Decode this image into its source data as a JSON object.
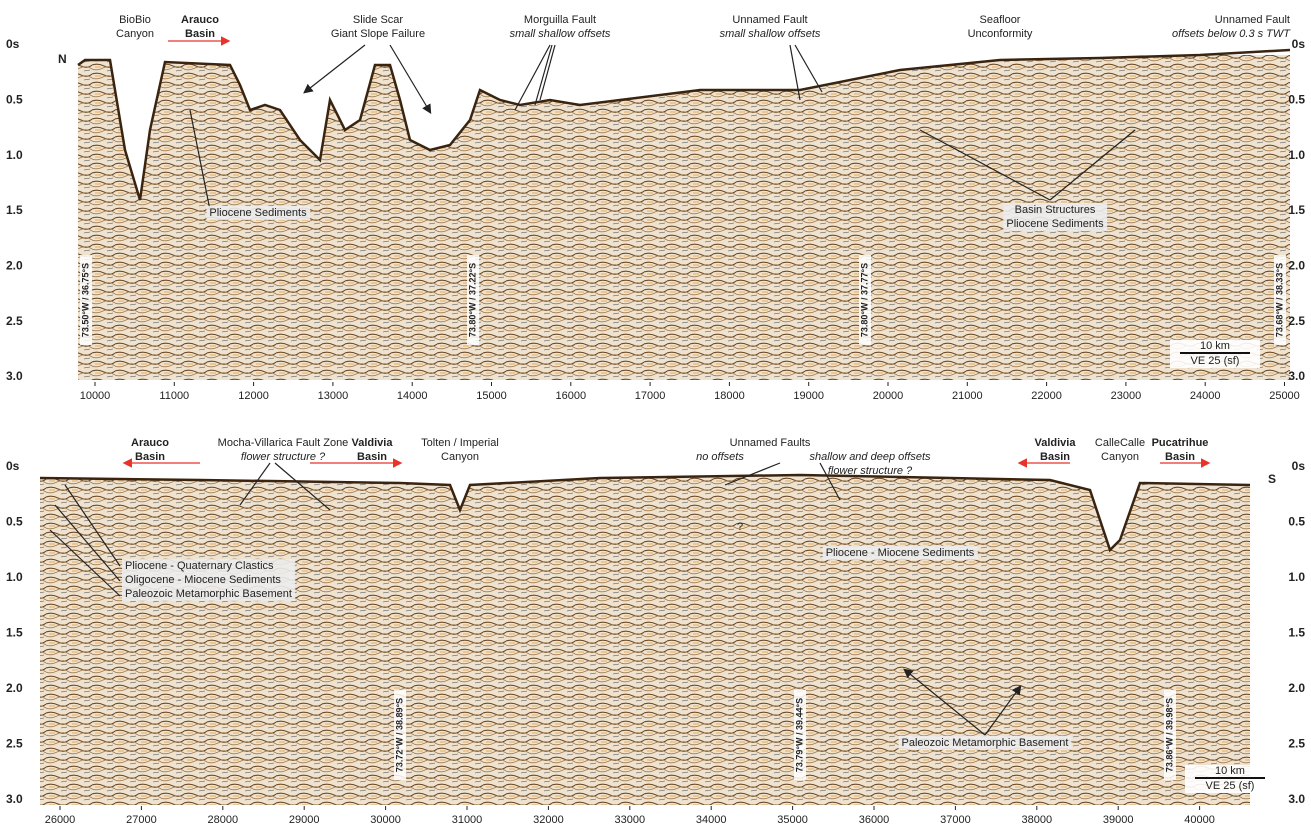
{
  "panels": [
    {
      "orientation": "N",
      "y_ticks": [
        "0s",
        "0.5",
        "1.0",
        "1.5",
        "2.0",
        "2.5",
        "3.0"
      ],
      "x_ticks": [
        10000,
        11000,
        12000,
        13000,
        14000,
        15000,
        16000,
        17000,
        18000,
        19000,
        20000,
        21000,
        22000,
        23000,
        24000,
        25000
      ],
      "annotations": [
        {
          "lines": [
            "BioBio",
            "Canyon"
          ]
        },
        {
          "lines": [
            "Arauco",
            "Basin"
          ]
        },
        {
          "lines": [
            "Slide Scar",
            "Giant Slope Failure"
          ]
        },
        {
          "lines": [
            "Morguilla Fault",
            "small shallow offsets"
          ]
        },
        {
          "lines": [
            "Unnamed Fault",
            "small shallow offsets"
          ]
        },
        {
          "lines": [
            "Seafloor",
            "Unconformity"
          ]
        },
        {
          "lines": [
            "Unnamed Fault",
            "offsets below 0.3 s TWT"
          ]
        }
      ],
      "labels": [
        {
          "lines": [
            "Pliocene Sediments"
          ]
        },
        {
          "lines": [
            "Basin Structures",
            "Pliocene Sediments"
          ]
        }
      ],
      "locations": [
        "73.50°W / 36.75°S",
        "73.80°W / 37.22°S",
        "73.80°W / 37.77°S",
        "73.68°W / 38.33°S"
      ],
      "scale_bar": {
        "distance": "10 km",
        "exaggeration": "VE 25 (sf)"
      }
    },
    {
      "orientation": "S",
      "y_ticks": [
        "0s",
        "0.5",
        "1.0",
        "1.5",
        "2.0",
        "2.5",
        "3.0"
      ],
      "x_ticks": [
        26000,
        27000,
        28000,
        29000,
        30000,
        31000,
        32000,
        33000,
        34000,
        35000,
        36000,
        37000,
        38000,
        39000,
        40000
      ],
      "annotations": [
        {
          "lines": [
            "Arauco",
            "Basin"
          ]
        },
        {
          "lines": [
            "Mocha-Villarica Fault Zone",
            "flower structure ?"
          ]
        },
        {
          "lines": [
            "Valdivia",
            "Basin"
          ]
        },
        {
          "lines": [
            "Tolten / Imperial",
            "Canyon"
          ]
        },
        {
          "lines": [
            "Unnamed Faults"
          ]
        },
        {
          "lines": [
            "no offsets"
          ]
        },
        {
          "lines": [
            "shallow and deep offsets",
            "flower structure ?"
          ]
        },
        {
          "lines": [
            "?"
          ]
        },
        {
          "lines": [
            "Valdivia",
            "Basin"
          ]
        },
        {
          "lines": [
            "CalleCalle",
            "Canyon"
          ]
        },
        {
          "lines": [
            "Pucatrihue",
            "Basin"
          ]
        }
      ],
      "labels": [
        {
          "lines": [
            "Pliocene - Miocene Sediments"
          ]
        },
        {
          "lines": [
            "Pliocene - Quaternary Clastics",
            "Oligocene - Miocene Sediments",
            "Paleozoic Metamorphic Basement"
          ]
        },
        {
          "lines": [
            "Paleozoic Metamorphic Basement"
          ]
        }
      ],
      "locations": [
        "73.72°W / 38.89°S",
        "73.79°W / 39.44°S",
        "73.86°W / 39.98°S"
      ],
      "scale_bar": {
        "distance": "10 km",
        "exaggeration": "VE 25 (sf)"
      }
    }
  ]
}
